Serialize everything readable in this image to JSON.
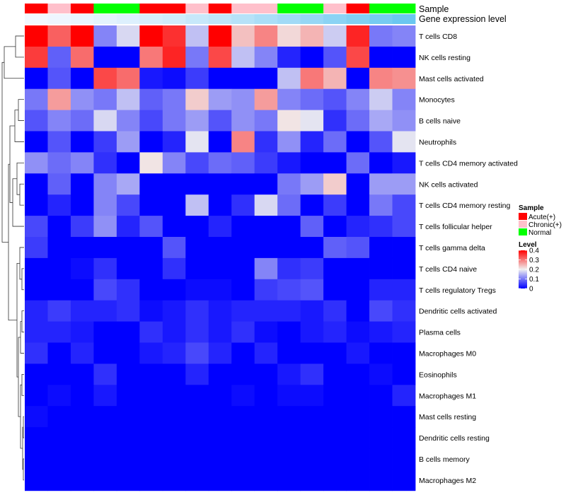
{
  "chart_data": {
    "type": "heatmap",
    "title": "",
    "column_annotations": [
      {
        "name": "Sample",
        "values": [
          "Acute(+)",
          "Chronic(+)",
          "Acute(+)",
          "Normal",
          "Normal",
          "Acute(+)",
          "Acute(+)",
          "Chronic(+)",
          "Acute(+)",
          "Chronic(+)",
          "Chronic(+)",
          "Normal",
          "Normal",
          "Chronic(+)",
          "Acute(+)",
          "Normal",
          "Normal"
        ]
      },
      {
        "name": "Gene expression level",
        "values": [
          0.02,
          0.04,
          0.06,
          0.09,
          0.12,
          0.15,
          0.18,
          0.22,
          0.26,
          0.3,
          0.35,
          0.4,
          0.45,
          0.5,
          0.55,
          0.6,
          0.65
        ]
      }
    ],
    "rows": [
      {
        "name": "T cells CD8",
        "values": [
          0.4,
          0.32,
          0.4,
          0.11,
          0.18,
          0.4,
          0.36,
          0.16,
          0.4,
          0.24,
          0.29,
          0.22,
          0.25,
          0.17,
          0.37,
          0.1,
          0.11
        ]
      },
      {
        "name": "NK cells resting",
        "values": [
          0.35,
          0.08,
          0.31,
          0.0,
          0.0,
          0.3,
          0.37,
          0.1,
          0.34,
          0.16,
          0.11,
          0.03,
          0.0,
          0.07,
          0.34,
          0.0,
          0.0
        ]
      },
      {
        "name": "Mast cells activated",
        "values": [
          0.0,
          0.07,
          0.0,
          0.34,
          0.31,
          0.02,
          0.01,
          0.05,
          0.0,
          0.0,
          0.0,
          0.16,
          0.3,
          0.25,
          0.0,
          0.29,
          0.28
        ]
      },
      {
        "name": "Monocytes",
        "values": [
          0.1,
          0.27,
          0.12,
          0.1,
          0.16,
          0.08,
          0.1,
          0.23,
          0.13,
          0.12,
          0.27,
          0.11,
          0.09,
          0.07,
          0.11,
          0.17,
          0.11
        ]
      },
      {
        "name": "B cells naive",
        "values": [
          0.07,
          0.11,
          0.09,
          0.18,
          0.11,
          0.06,
          0.1,
          0.13,
          0.07,
          0.12,
          0.1,
          0.21,
          0.19,
          0.04,
          0.09,
          0.14,
          0.12
        ]
      },
      {
        "name": "Neutrophils",
        "values": [
          0.0,
          0.07,
          0.0,
          0.05,
          0.13,
          0.0,
          0.03,
          0.19,
          0.0,
          0.29,
          0.04,
          0.12,
          0.03,
          0.09,
          0.0,
          0.07,
          0.19
        ]
      },
      {
        "name": "T cells CD4 memory activated",
        "values": [
          0.12,
          0.09,
          0.11,
          0.04,
          0.0,
          0.21,
          0.11,
          0.06,
          0.09,
          0.08,
          0.05,
          0.02,
          0.0,
          0.0,
          0.09,
          0.0,
          0.02
        ]
      },
      {
        "name": "NK cells activated",
        "values": [
          0.0,
          0.08,
          0.0,
          0.11,
          0.14,
          0.0,
          0.0,
          0.0,
          0.0,
          0.0,
          0.0,
          0.1,
          0.13,
          0.23,
          0.0,
          0.13,
          0.13
        ]
      },
      {
        "name": "T cells CD4 memory resting",
        "values": [
          0.0,
          0.03,
          0.0,
          0.11,
          0.06,
          0.0,
          0.0,
          0.16,
          0.0,
          0.04,
          0.18,
          0.09,
          0.0,
          0.05,
          0.0,
          0.1,
          0.06
        ]
      },
      {
        "name": "T cells follicular helper",
        "values": [
          0.06,
          0.0,
          0.05,
          0.12,
          0.03,
          0.07,
          0.0,
          0.0,
          0.03,
          0.0,
          0.0,
          0.0,
          0.08,
          0.0,
          0.03,
          0.04,
          0.06
        ]
      },
      {
        "name": "T cells gamma delta",
        "values": [
          0.05,
          0.0,
          0.0,
          0.0,
          0.0,
          0.0,
          0.07,
          0.0,
          0.0,
          0.0,
          0.0,
          0.0,
          0.0,
          0.08,
          0.07,
          0.0,
          0.0
        ]
      },
      {
        "name": "T cells CD4 naive",
        "values": [
          0.0,
          0.0,
          0.01,
          0.04,
          0.0,
          0.0,
          0.04,
          0.0,
          0.0,
          0.0,
          0.11,
          0.04,
          0.05,
          0.0,
          0.0,
          0.0,
          0.0
        ]
      },
      {
        "name": "T cells regulatory  Tregs",
        "values": [
          0.0,
          0.0,
          0.0,
          0.06,
          0.04,
          0.0,
          0.0,
          0.01,
          0.01,
          0.0,
          0.05,
          0.06,
          0.07,
          0.0,
          0.0,
          0.03,
          0.03
        ]
      },
      {
        "name": "Dendritic cells activated",
        "values": [
          0.03,
          0.05,
          0.03,
          0.03,
          0.04,
          0.01,
          0.02,
          0.04,
          0.02,
          0.03,
          0.03,
          0.03,
          0.02,
          0.04,
          0.0,
          0.06,
          0.04
        ]
      },
      {
        "name": "Plasma cells",
        "values": [
          0.03,
          0.03,
          0.02,
          0.0,
          0.0,
          0.04,
          0.02,
          0.04,
          0.02,
          0.04,
          0.01,
          0.0,
          0.02,
          0.03,
          0.01,
          0.02,
          0.03
        ]
      },
      {
        "name": "Macrophages M0",
        "values": [
          0.04,
          0.0,
          0.03,
          0.0,
          0.0,
          0.02,
          0.03,
          0.06,
          0.03,
          0.0,
          0.03,
          0.0,
          0.0,
          0.0,
          0.02,
          0.0,
          0.0
        ]
      },
      {
        "name": "Eosinophils",
        "values": [
          0.0,
          0.0,
          0.0,
          0.04,
          0.0,
          0.0,
          0.0,
          0.03,
          0.0,
          0.0,
          0.0,
          0.02,
          0.04,
          0.0,
          0.0,
          0.01,
          0.0
        ]
      },
      {
        "name": "Macrophages M1",
        "values": [
          0.0,
          0.01,
          0.0,
          0.02,
          0.0,
          0.0,
          0.0,
          0.0,
          0.0,
          0.01,
          0.0,
          0.01,
          0.01,
          0.0,
          0.0,
          0.0,
          0.03
        ]
      },
      {
        "name": "Mast cells resting",
        "values": [
          0.01,
          0.0,
          0.0,
          0.0,
          0.0,
          0.0,
          0.0,
          0.0,
          0.0,
          0.0,
          0.0,
          0.0,
          0.0,
          0.0,
          0.0,
          0.0,
          0.0
        ]
      },
      {
        "name": "Dendritic cells resting",
        "values": [
          0.0,
          0.0,
          0.0,
          0.0,
          0.0,
          0.0,
          0.0,
          0.0,
          0.0,
          0.0,
          0.0,
          0.0,
          0.0,
          0.0,
          0.0,
          0.0,
          0.0
        ]
      },
      {
        "name": "B cells memory",
        "values": [
          0.0,
          0.0,
          0.0,
          0.0,
          0.0,
          0.0,
          0.0,
          0.0,
          0.0,
          0.0,
          0.0,
          0.0,
          0.0,
          0.0,
          0.0,
          0.0,
          0.0
        ]
      },
      {
        "name": "Macrophages M2",
        "values": [
          0.0,
          0.0,
          0.0,
          0.0,
          0.0,
          0.0,
          0.0,
          0.0,
          0.0,
          0.0,
          0.0,
          0.0,
          0.0,
          0.0,
          0.0,
          0.0,
          0.0
        ]
      }
    ],
    "row_dendrogram": true,
    "color_scale": {
      "min": 0,
      "max": 0.4,
      "low": "#0000FF",
      "mid": "#F0F0F0",
      "high": "#FF0000"
    },
    "legend": {
      "position": "right",
      "sample_title": "Sample",
      "sample_items": [
        {
          "label": "Acute(+)",
          "color": "#FF0000"
        },
        {
          "label": "Chronic(+)",
          "color": "#FFC0CB"
        },
        {
          "label": "Normal",
          "color": "#00FF00"
        }
      ],
      "level_title": "Level",
      "level_ticks": [
        "0.4",
        "0.3",
        "0.2",
        "0.1",
        "0"
      ],
      "level_tick_values": [
        0.4,
        0.3,
        0.2,
        0.1,
        0
      ]
    },
    "gene_expression_colors": {
      "low": "#F2F8FF",
      "high": "#6BC7F0"
    }
  }
}
